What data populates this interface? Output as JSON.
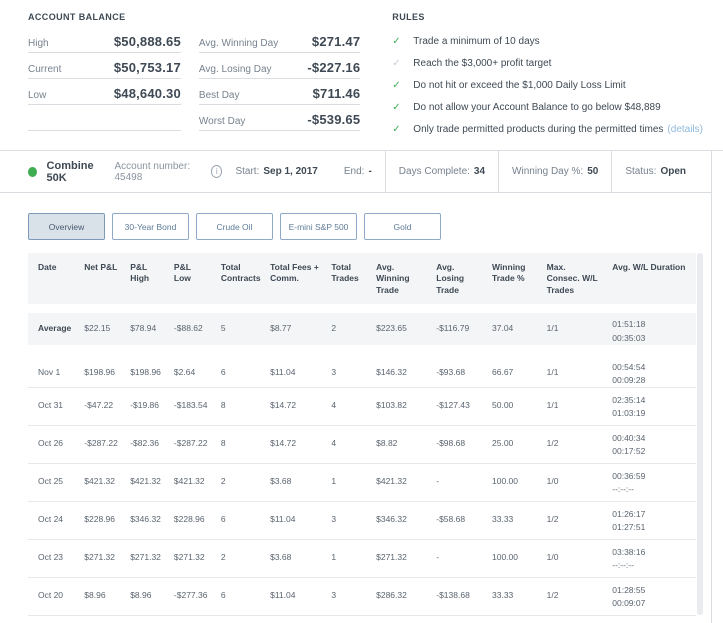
{
  "account_balance": {
    "title": "ACCOUNT BALANCE",
    "rows": [
      {
        "label": "High",
        "value": "$50,888.65"
      },
      {
        "label": "Current",
        "value": "$50,753.17"
      },
      {
        "label": "Low",
        "value": "$48,640.30"
      }
    ]
  },
  "day_stats": {
    "rows": [
      {
        "label": "Avg. Winning Day",
        "value": "$271.47"
      },
      {
        "label": "Avg. Losing Day",
        "value": "-$227.16"
      },
      {
        "label": "Best Day",
        "value": "$711.46"
      },
      {
        "label": "Worst Day",
        "value": "-$539.65"
      }
    ]
  },
  "rules": {
    "title": "RULES",
    "items": [
      {
        "text": "Trade a minimum of 10 days",
        "checked": true
      },
      {
        "text": "Reach the $3,000+ profit target",
        "checked": false
      },
      {
        "text": "Do not hit or exceed the $1,000 Daily Loss Limit",
        "checked": true
      },
      {
        "text": "Do not allow your Account Balance to go below $48,889",
        "checked": true
      },
      {
        "text": "Only trade permitted products during the permitted times",
        "link": "(details)",
        "checked": true
      }
    ]
  },
  "account_bar": {
    "name": "Combine 50K",
    "account_number": "Account number: 45498",
    "info_icon": "i",
    "start_label": "Start:",
    "start_value": "Sep 1, 2017",
    "end_label": "End:",
    "end_value": "-",
    "days_complete_label": "Days Complete:",
    "days_complete_value": "34",
    "winning_day_label": "Winning Day %:",
    "winning_day_value": "50",
    "status_label": "Status:",
    "status_value": "Open"
  },
  "tabs": [
    {
      "label": "Overview",
      "active": true
    },
    {
      "label": "30-Year Bond",
      "active": false
    },
    {
      "label": "Crude Oil",
      "active": false
    },
    {
      "label": "E-mini S&P 500",
      "active": false
    },
    {
      "label": "Gold",
      "active": false
    }
  ],
  "table": {
    "headers": [
      "Date",
      "Net P&L",
      "P&L High",
      "P&L Low",
      "Total Contracts",
      "Total Fees + Comm.",
      "Total Trades",
      "Avg. Winning Trade",
      "Avg. Losing Trade",
      "Winning Trade %",
      "Max. Consec. W/L Trades",
      "Avg. W/L Duration"
    ],
    "rows": [
      {
        "cells": [
          "Average",
          "$22.15",
          "$78.94",
          "-$88.62",
          "5",
          "$8.77",
          "2",
          "$223.65",
          "-$116.79",
          "37.04",
          "1/1"
        ],
        "duration": [
          "01:51:18",
          "00:35:03"
        ],
        "highlight": true
      },
      {
        "cells": [
          "Nov 1",
          "$198.96",
          "$198.96",
          "$2.64",
          "6",
          "$11.04",
          "3",
          "$146.32",
          "-$93.68",
          "66.67",
          "1/1"
        ],
        "duration": [
          "00:54:54",
          "00:09:28"
        ],
        "highlight": false
      },
      {
        "cells": [
          "Oct 31",
          "-$47.22",
          "-$19.86",
          "-$183.54",
          "8",
          "$14.72",
          "4",
          "$103.82",
          "-$127.43",
          "50.00",
          "1/1"
        ],
        "duration": [
          "02:35:14",
          "01:03:19"
        ],
        "highlight": false
      },
      {
        "cells": [
          "Oct 26",
          "-$287.22",
          "-$82.36",
          "-$287.22",
          "8",
          "$14.72",
          "4",
          "$8.82",
          "-$98.68",
          "25.00",
          "1/2"
        ],
        "duration": [
          "00:40:34",
          "00:17:52"
        ],
        "highlight": false
      },
      {
        "cells": [
          "Oct 25",
          "$421.32",
          "$421.32",
          "$421.32",
          "2",
          "$3.68",
          "1",
          "$421.32",
          "-",
          "100.00",
          "1/0"
        ],
        "duration": [
          "00:36:59",
          "--:--:--"
        ],
        "highlight": false
      },
      {
        "cells": [
          "Oct 24",
          "$228.96",
          "$346.32",
          "$228.96",
          "6",
          "$11.04",
          "3",
          "$346.32",
          "-$58.68",
          "33.33",
          "1/2"
        ],
        "duration": [
          "01:26:17",
          "01:27:51"
        ],
        "highlight": false
      },
      {
        "cells": [
          "Oct 23",
          "$271.32",
          "$271.32",
          "$271.32",
          "2",
          "$3.68",
          "1",
          "$271.32",
          "-",
          "100.00",
          "1/0"
        ],
        "duration": [
          "03:38:16",
          "--:--:--"
        ],
        "highlight": false
      },
      {
        "cells": [
          "Oct 20",
          "$8.96",
          "$8.96",
          "-$277.36",
          "6",
          "$11.04",
          "3",
          "$286.32",
          "-$138.68",
          "33.33",
          "1/2"
        ],
        "duration": [
          "01:28:55",
          "00:09:07"
        ],
        "highlight": false
      }
    ]
  },
  "colors": {
    "accent_green": "#3fae52",
    "link_blue": "#8fb8dc",
    "tab_border_blue": "#8fa9c6",
    "row_highlight": "#f4f5f7",
    "text_dark": "#3e4954",
    "text_muted": "#77828e",
    "line_gray": "#d9dde2"
  }
}
